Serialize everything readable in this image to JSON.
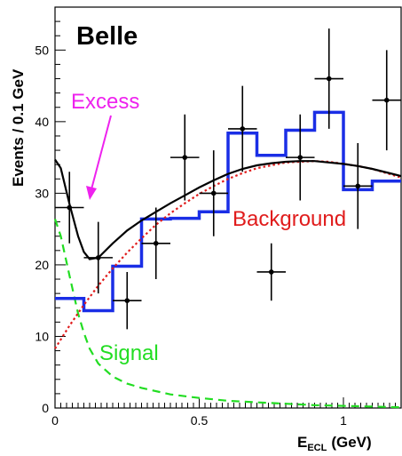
{
  "chart_data": {
    "type": "scatter",
    "title": "Belle",
    "xlabel_main": "E",
    "xlabel_sub": "ECL",
    "xlabel_unit": "(GeV)",
    "ylabel": "Events / 0.1 GeV",
    "xlim": [
      0,
      1.2
    ],
    "ylim": [
      0,
      56
    ],
    "x_ticks": [
      0,
      0.5,
      1
    ],
    "x_tick_labels": [
      "0",
      "0.5",
      "1"
    ],
    "y_ticks": [
      0,
      10,
      20,
      30,
      40,
      50
    ],
    "y_tick_labels": [
      "0",
      "10",
      "20",
      "30",
      "40",
      "50"
    ],
    "annotations": {
      "excess": "Excess",
      "background": "Background",
      "signal": "Signal"
    },
    "colors": {
      "data": "#000000",
      "histogram": "#1a2ee6",
      "fit": "#000000",
      "background": "#e01c1c",
      "signal": "#22dd22",
      "excess": "#ee22ee"
    },
    "data_points": [
      {
        "x": 0.05,
        "y": 28,
        "err": 5
      },
      {
        "x": 0.15,
        "y": 21,
        "err": 5
      },
      {
        "x": 0.25,
        "y": 15,
        "err": 4
      },
      {
        "x": 0.35,
        "y": 23,
        "err": 5
      },
      {
        "x": 0.45,
        "y": 35,
        "err": 6
      },
      {
        "x": 0.55,
        "y": 30,
        "err": 6
      },
      {
        "x": 0.65,
        "y": 39,
        "err": 6
      },
      {
        "x": 0.75,
        "y": 19,
        "err": 4
      },
      {
        "x": 0.85,
        "y": 35,
        "err": 6
      },
      {
        "x": 0.95,
        "y": 46,
        "err": 7
      },
      {
        "x": 1.05,
        "y": 31,
        "err": 6
      },
      {
        "x": 1.15,
        "y": 43,
        "err": 7
      }
    ],
    "histogram": {
      "edges": [
        0,
        0.1,
        0.2,
        0.3,
        0.4,
        0.5,
        0.6,
        0.7,
        0.8,
        0.9,
        1.0,
        1.1,
        1.2
      ],
      "values": [
        15.3,
        13.6,
        19.8,
        26.4,
        26.5,
        27.4,
        38.4,
        35.3,
        38.8,
        41.3,
        30.5,
        31.7
      ]
    },
    "background_curve": {
      "x": [
        0,
        0.05,
        0.1,
        0.15,
        0.2,
        0.25,
        0.3,
        0.35,
        0.4,
        0.45,
        0.5,
        0.55,
        0.6,
        0.65,
        0.7,
        0.75,
        0.8,
        0.85,
        0.9,
        0.95,
        1.0,
        1.05,
        1.1,
        1.15,
        1.2
      ],
      "y": [
        8.3,
        11.5,
        14.4,
        17.1,
        19.5,
        21.7,
        23.7,
        25.6,
        27.2,
        28.6,
        29.9,
        31.0,
        32.0,
        32.8,
        33.5,
        33.9,
        34.3,
        34.4,
        34.5,
        34.4,
        34.1,
        33.8,
        33.4,
        32.8,
        32.2
      ]
    },
    "signal_curve": {
      "x": [
        0,
        0.02,
        0.05,
        0.08,
        0.1,
        0.12,
        0.15,
        0.2,
        0.25,
        0.3,
        0.4,
        0.5,
        0.6,
        0.7,
        0.8,
        0.9,
        1.0,
        1.1,
        1.2
      ],
      "y": [
        26.4,
        24.0,
        18.5,
        13.2,
        10.5,
        8.3,
        6.2,
        4.4,
        3.4,
        2.8,
        1.9,
        1.4,
        1.0,
        0.8,
        0.6,
        0.4,
        0.3,
        0.2,
        0.1
      ]
    },
    "total_curve": {
      "x": [
        0,
        0.02,
        0.05,
        0.08,
        0.1,
        0.12,
        0.15,
        0.2,
        0.25,
        0.3,
        0.35,
        0.4,
        0.45,
        0.5,
        0.55,
        0.6,
        0.65,
        0.7,
        0.75,
        0.8,
        0.85,
        0.9,
        0.95,
        1.0,
        1.05,
        1.1,
        1.15,
        1.2
      ],
      "y": [
        34.7,
        33.5,
        28.5,
        24.0,
        21.8,
        20.8,
        21.0,
        23.0,
        24.8,
        26.2,
        27.4,
        28.6,
        29.7,
        30.8,
        31.8,
        32.7,
        33.4,
        33.9,
        34.2,
        34.4,
        34.5,
        34.5,
        34.3,
        34.1,
        33.8,
        33.4,
        32.9,
        32.4
      ]
    }
  }
}
